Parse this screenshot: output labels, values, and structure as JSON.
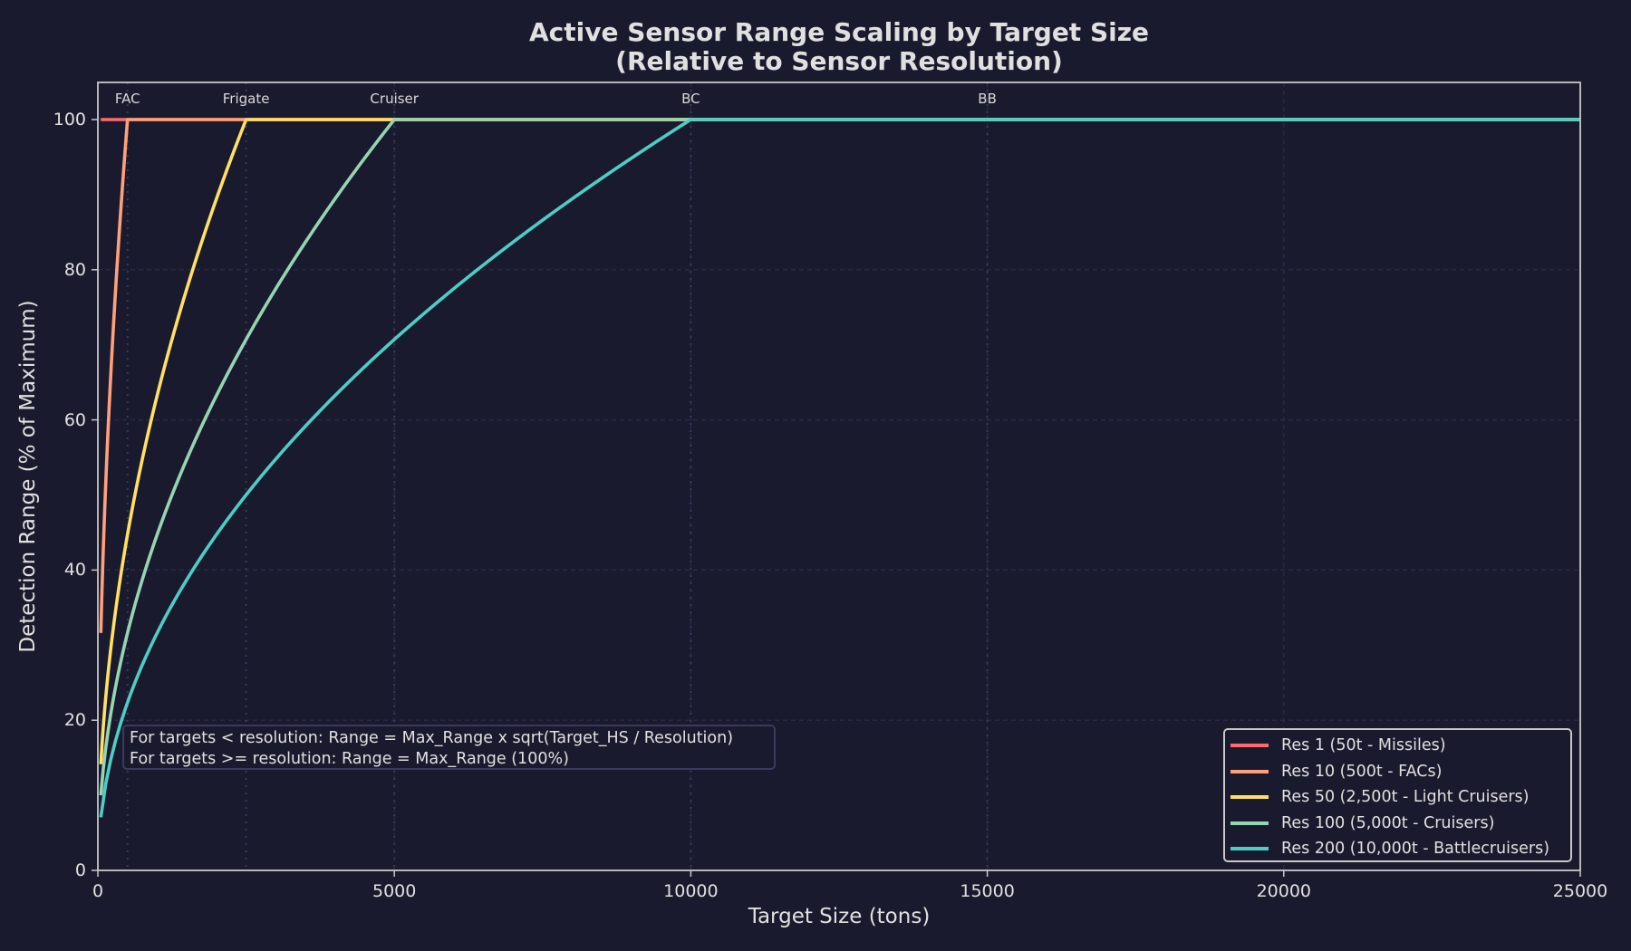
{
  "chart_data": {
    "type": "line",
    "title": "Active Sensor Range Scaling by Target Size",
    "subtitle": "(Relative to Sensor Resolution)",
    "xlabel": "Target Size (tons)",
    "ylabel": "Detection Range (% of Maximum)",
    "xlim": [
      0,
      25000
    ],
    "ylim": [
      0,
      105
    ],
    "xticks": [
      0,
      5000,
      10000,
      15000,
      20000,
      25000
    ],
    "yticks": [
      0,
      20,
      40,
      60,
      80,
      100
    ],
    "grid": true,
    "legend_position": "lower right",
    "x_start": 50,
    "formula": "range = 100 * sqrt(size / (resolution*50)) for size < resolution*50, else 100",
    "series": [
      {
        "name": "Res 1 (50t - Missiles)",
        "resolution": 1,
        "threshold_tons": 50,
        "color": "#ff6b6b",
        "start_value": 100
      },
      {
        "name": "Res 10 (500t - FACs)",
        "resolution": 10,
        "threshold_tons": 500,
        "color": "#ffa07a",
        "start_value": 31.6
      },
      {
        "name": "Res 50 (2,500t - Light Cruisers)",
        "resolution": 50,
        "threshold_tons": 2500,
        "color": "#ffe066",
        "start_value": 14.1
      },
      {
        "name": "Res 100 (5,000t - Cruisers)",
        "resolution": 100,
        "threshold_tons": 5000,
        "color": "#95d5b2",
        "start_value": 10.0
      },
      {
        "name": "Res 200 (10,000t - Battlecruisers)",
        "resolution": 200,
        "threshold_tons": 10000,
        "color": "#4ecdc4",
        "start_value": 7.1
      }
    ],
    "sample_points": {
      "x": [
        50,
        500,
        1000,
        2500,
        5000,
        7500,
        10000,
        15000,
        25000
      ],
      "Res 1": [
        100,
        100,
        100,
        100,
        100,
        100,
        100,
        100,
        100
      ],
      "Res 10": [
        31.6,
        100,
        100,
        100,
        100,
        100,
        100,
        100,
        100
      ],
      "Res 50": [
        14.1,
        44.7,
        63.2,
        100,
        100,
        100,
        100,
        100,
        100
      ],
      "Res 100": [
        10.0,
        31.6,
        44.7,
        70.7,
        100,
        100,
        100,
        100,
        100
      ],
      "Res 200": [
        7.1,
        22.4,
        31.6,
        50.0,
        70.7,
        86.6,
        100,
        100,
        100
      ]
    },
    "annotations": {
      "class_markers": [
        {
          "label": "FAC",
          "x": 500
        },
        {
          "label": "Frigate",
          "x": 2500
        },
        {
          "label": "Cruiser",
          "x": 5000
        },
        {
          "label": "BC",
          "x": 10000
        },
        {
          "label": "BB",
          "x": 15000
        }
      ],
      "formula_box": [
        "For targets < resolution: Range = Max_Range x sqrt(Target_HS / Resolution)",
        "For targets >= resolution: Range = Max_Range (100%)"
      ]
    }
  },
  "colors": {
    "background": "#1a1a2e",
    "grid": "#2c2c48",
    "marker_line": "#3a3a58",
    "spine": "#c8c8c8",
    "text": "#e0e0e0"
  }
}
